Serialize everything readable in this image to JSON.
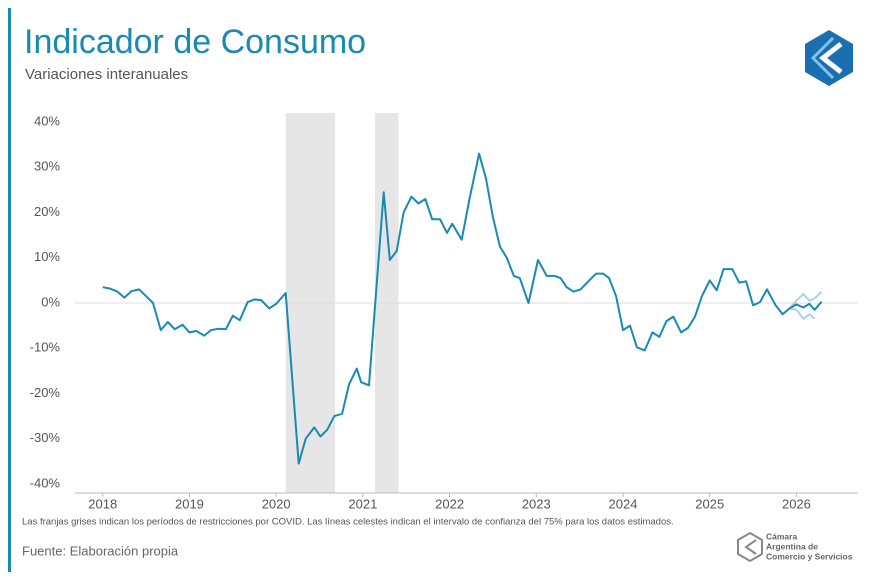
{
  "chart_data": {
    "type": "line",
    "title": "Indicador de Consumo",
    "subtitle": "Variaciones interanuales",
    "note": "Las franjas grises indican los períodos de restricciones por COVID. Las líneas celestes indican el intervalo de confianza del 75% para los datos estimados.",
    "source": "Fuente: Elaboración propia",
    "logo_text": [
      "Cámara",
      "Argentina de",
      "Comercio y Servicios"
    ],
    "xlim": [
      2017.68,
      2026.71
    ],
    "xticks": [
      2018,
      2019,
      2020,
      2021,
      2022,
      2023,
      2024,
      2025,
      2026
    ],
    "ylim": [
      -42,
      42
    ],
    "yticks": [
      {
        "value": 40,
        "label": "40%"
      },
      {
        "value": 30,
        "label": "30%"
      },
      {
        "value": 20,
        "label": "20%"
      },
      {
        "value": 10,
        "label": "10%"
      },
      {
        "value": 0,
        "label": "0%"
      },
      {
        "value": -10,
        "label": "-10%"
      },
      {
        "value": -20,
        "label": "-20%"
      },
      {
        "value": -30,
        "label": "-30%"
      },
      {
        "value": -40,
        "label": "-40%"
      }
    ],
    "zero_line": 0,
    "shaded_periods": [
      [
        2020.11,
        2020.68
      ],
      [
        2021.14,
        2021.41
      ]
    ],
    "shade_color": "#e6e6e6",
    "series": [
      {
        "color": "#1a8ab3",
        "x": [
          2018.0,
          2018.08,
          2018.17,
          2018.25,
          2018.33,
          2018.42,
          2018.5,
          2018.58,
          2018.67,
          2018.75,
          2018.83,
          2018.92,
          2019.0,
          2019.08,
          2019.17,
          2019.25,
          2019.33,
          2019.42,
          2019.5,
          2019.58,
          2019.67,
          2019.75,
          2019.83,
          2019.92,
          2020.0,
          2020.11,
          2020.26,
          2020.34,
          2020.44,
          2020.51,
          2020.59,
          2020.67,
          2020.76,
          2020.84,
          2020.93,
          2020.98,
          2021.07,
          2021.24,
          2021.31,
          2021.39,
          2021.47,
          2021.56,
          2021.64,
          2021.72,
          2021.8,
          2021.89,
          2021.97,
          2022.03,
          2022.14,
          2022.23,
          2022.34,
          2022.42,
          2022.5,
          2022.58,
          2022.66,
          2022.74,
          2022.81,
          2022.91,
          2023.02,
          2023.12,
          2023.21,
          2023.28,
          2023.35,
          2023.43,
          2023.51,
          2023.61,
          2023.69,
          2023.77,
          2023.84,
          2023.92,
          2024.0,
          2024.08,
          2024.16,
          2024.25,
          2024.34,
          2024.42,
          2024.5,
          2024.58,
          2024.67,
          2024.75,
          2024.83,
          2024.91,
          2025.0,
          2025.08,
          2025.16,
          2025.26,
          2025.34,
          2025.42,
          2025.5,
          2025.58,
          2025.66,
          2025.76,
          2025.84,
          2025.92,
          2026.0,
          2026.08,
          2026.15,
          2026.21,
          2026.29
        ],
        "values": [
          3.5,
          3.2,
          2.5,
          1.2,
          2.6,
          3.0,
          1.5,
          0.0,
          -6.0,
          -4.2,
          -5.8,
          -4.8,
          -6.5,
          -6.2,
          -7.2,
          -6.0,
          -5.7,
          -5.8,
          -2.8,
          -3.8,
          0.2,
          0.8,
          0.6,
          -1.2,
          -0.2,
          2.2,
          -35.5,
          -30,
          -27.5,
          -29.5,
          -28,
          -25,
          -24.5,
          -18,
          -14.5,
          -17.5,
          -18.2,
          24.5,
          9.5,
          11.5,
          20,
          23.5,
          22,
          23,
          18.5,
          18.5,
          15.5,
          17.5,
          14,
          23,
          33,
          27.5,
          19,
          12.5,
          10,
          6,
          5.5,
          0,
          9.5,
          6,
          6,
          5.5,
          3.5,
          2.5,
          3,
          5,
          6.5,
          6.5,
          5.5,
          1.5,
          -6,
          -5,
          -9.8,
          -10.5,
          -6.5,
          -7.5,
          -4,
          -3,
          -6.5,
          -5.5,
          -3,
          1.5,
          5,
          2.8,
          7.5,
          7.5,
          4.5,
          4.8,
          -0.5,
          0.2,
          3,
          -0.5,
          -2.5,
          -1.2,
          -0.3,
          -1,
          -0.2,
          -1.5,
          0.3
        ]
      },
      {
        "color": "#a9d3e6",
        "x": [
          2025.92,
          2026.0,
          2026.08,
          2026.15,
          2026.21,
          2026.29
        ],
        "values": [
          -1.2,
          0.5,
          2,
          0.5,
          1,
          2.5
        ]
      },
      {
        "color": "#a9d3e6",
        "x": [
          2025.92,
          2026.0,
          2026.08,
          2026.15,
          2026.21
        ],
        "values": [
          -1.2,
          -1.5,
          -3.5,
          -2.5,
          -3.5
        ]
      }
    ]
  }
}
